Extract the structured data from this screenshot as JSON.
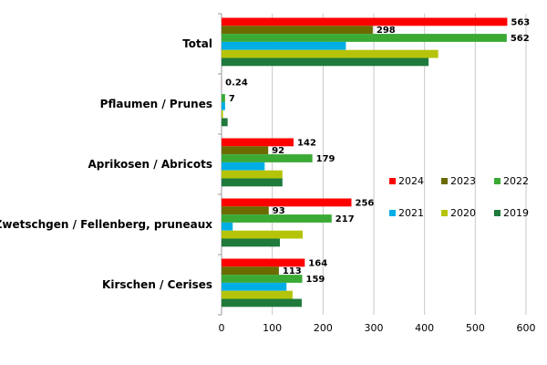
{
  "chart_data": {
    "type": "bar",
    "orientation": "horizontal",
    "title": "",
    "xlabel": "",
    "ylabel": "",
    "categories": [
      "Total",
      "Pflaumen / Prunes",
      "Aprikosen / Abricots",
      "Zwetschgen / Fellenberg, pruneaux",
      "Kirschen / Cerises"
    ],
    "series": [
      {
        "name": "2024",
        "color": "#ff0000",
        "values": [
          563,
          0.24,
          142,
          256,
          164
        ]
      },
      {
        "name": "2023",
        "color": "#6b6b00",
        "values": [
          298,
          0,
          92,
          93,
          113
        ]
      },
      {
        "name": "2022",
        "color": "#3aaa35",
        "values": [
          562,
          7,
          179,
          217,
          159
        ]
      },
      {
        "name": "2021",
        "color": "#00aee6",
        "values": [
          245,
          7,
          85,
          22,
          128
        ]
      },
      {
        "name": "2020",
        "color": "#b5c40b",
        "values": [
          427,
          3,
          120,
          160,
          140
        ]
      },
      {
        "name": "2019",
        "color": "#1f7a3c",
        "values": [
          408,
          12,
          120,
          115,
          158
        ]
      }
    ],
    "data_labels": {
      "2024": [
        "563",
        "0.24",
        "142",
        "256",
        "164"
      ],
      "2023": [
        "298",
        null,
        "92",
        "93",
        "113"
      ],
      "2022": [
        "562",
        "7",
        "179",
        "217",
        "159"
      ]
    },
    "xlim": [
      0,
      600
    ],
    "xticks": [
      "0",
      "100",
      "200",
      "300",
      "400",
      "500",
      "600"
    ],
    "grid": "vertical",
    "legend_position": "center-right"
  }
}
